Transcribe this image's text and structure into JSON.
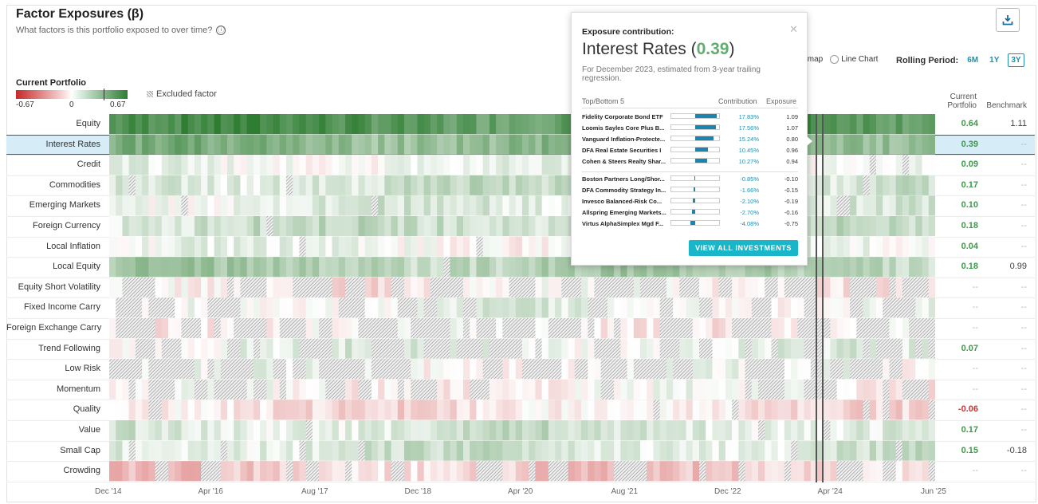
{
  "header": {
    "title": "Factor Exposures (β)",
    "subtitle": "What factors is this portfolio exposed to over time?",
    "info_icon": "ⓘ",
    "download_icon": "download-icon"
  },
  "legend": {
    "title": "Current Portfolio",
    "min_label": "-0.67",
    "mid_label": "0",
    "max_label": "0.67",
    "excluded_label": "Excluded factor"
  },
  "controls": {
    "heatmap_label_partial": "tmap",
    "line_chart_label": "Line Chart",
    "rolling_label": "Rolling Period:",
    "periods": [
      "6M",
      "1Y",
      "3Y"
    ],
    "selected_period": "3Y"
  },
  "columns": {
    "current_line1": "Current",
    "current_line2": "Portfolio",
    "benchmark": "Benchmark"
  },
  "chart_data": {
    "type": "heatmap",
    "x_tick_labels": [
      "Dec '14",
      "Apr '16",
      "Aug '17",
      "Dec '18",
      "Apr '20",
      "Aug '21",
      "Dec '22",
      "Apr '24",
      "Jun '25"
    ],
    "color_scale": {
      "min": -0.67,
      "max": 0.67,
      "neg_color": "#c62828",
      "mid_color": "#ffffff",
      "pos_color": "#2e7d32"
    },
    "selected_row": "Interest Rates",
    "rows": [
      {
        "factor": "Equity",
        "current": "0.64",
        "benchmark": "1.11",
        "sign": "pos"
      },
      {
        "factor": "Interest Rates",
        "current": "0.39",
        "benchmark": "--",
        "sign": "pos"
      },
      {
        "factor": "Credit",
        "current": "0.09",
        "benchmark": "--",
        "sign": "pos"
      },
      {
        "factor": "Commodities",
        "current": "0.17",
        "benchmark": "--",
        "sign": "pos"
      },
      {
        "factor": "Emerging Markets",
        "current": "0.10",
        "benchmark": "--",
        "sign": "pos"
      },
      {
        "factor": "Foreign Currency",
        "current": "0.18",
        "benchmark": "--",
        "sign": "pos"
      },
      {
        "factor": "Local Inflation",
        "current": "0.04",
        "benchmark": "--",
        "sign": "pos"
      },
      {
        "factor": "Local Equity",
        "current": "0.18",
        "benchmark": "0.99",
        "sign": "pos"
      },
      {
        "factor": "Equity Short Volatility",
        "current": "--",
        "benchmark": "--",
        "sign": "none"
      },
      {
        "factor": "Fixed Income Carry",
        "current": "--",
        "benchmark": "--",
        "sign": "none"
      },
      {
        "factor": "Foreign Exchange Carry",
        "current": "--",
        "benchmark": "--",
        "sign": "none"
      },
      {
        "factor": "Trend Following",
        "current": "0.07",
        "benchmark": "--",
        "sign": "pos"
      },
      {
        "factor": "Low Risk",
        "current": "--",
        "benchmark": "--",
        "sign": "none"
      },
      {
        "factor": "Momentum",
        "current": "--",
        "benchmark": "--",
        "sign": "none"
      },
      {
        "factor": "Quality",
        "current": "-0.06",
        "benchmark": "--",
        "sign": "neg"
      },
      {
        "factor": "Value",
        "current": "0.17",
        "benchmark": "--",
        "sign": "pos"
      },
      {
        "factor": "Small Cap",
        "current": "0.15",
        "benchmark": "-0.18",
        "sign": "pos"
      },
      {
        "factor": "Crowding",
        "current": "--",
        "benchmark": "--",
        "sign": "none"
      }
    ]
  },
  "tooltip": {
    "heading": "Exposure contribution:",
    "factor": "Interest Rates",
    "value": "0.39",
    "description": "For December 2023, estimated from 3-year trailing regression.",
    "col_top_bottom": "Top/Bottom 5",
    "col_contribution": "Contribution",
    "col_exposure": "Exposure",
    "top": [
      {
        "name": "Fidelity Corporate Bond ETF",
        "contribution": "17.83%",
        "pct": 17.83,
        "exposure": "1.09"
      },
      {
        "name": "Loomis Sayles Core Plus B...",
        "contribution": "17.56%",
        "pct": 17.56,
        "exposure": "1.07"
      },
      {
        "name": "Vanguard Inflation-Protecte...",
        "contribution": "15.24%",
        "pct": 15.24,
        "exposure": "0.80"
      },
      {
        "name": "DFA Real Estate Securities I",
        "contribution": "10.45%",
        "pct": 10.45,
        "exposure": "0.96"
      },
      {
        "name": "Cohen & Steers Realty Shar...",
        "contribution": "10.27%",
        "pct": 10.27,
        "exposure": "0.94"
      }
    ],
    "bottom": [
      {
        "name": "Boston Partners Long/Shor...",
        "contribution": "-0.85%",
        "pct": -0.85,
        "exposure": "-0.10"
      },
      {
        "name": "DFA Commodity Strategy In...",
        "contribution": "-1.66%",
        "pct": -1.66,
        "exposure": "-0.15"
      },
      {
        "name": "Invesco Balanced-Risk Co...",
        "contribution": "-2.10%",
        "pct": -2.1,
        "exposure": "-0.19"
      },
      {
        "name": "Allspring Emerging Markets...",
        "contribution": "-2.70%",
        "pct": -2.7,
        "exposure": "-0.16"
      },
      {
        "name": "Virtus AlphaSimplex Mgd F...",
        "contribution": "-4.08%",
        "pct": -4.08,
        "exposure": "-0.75"
      }
    ],
    "button_label": "VIEW ALL INVESTMENTS",
    "close_icon": "close-icon"
  }
}
